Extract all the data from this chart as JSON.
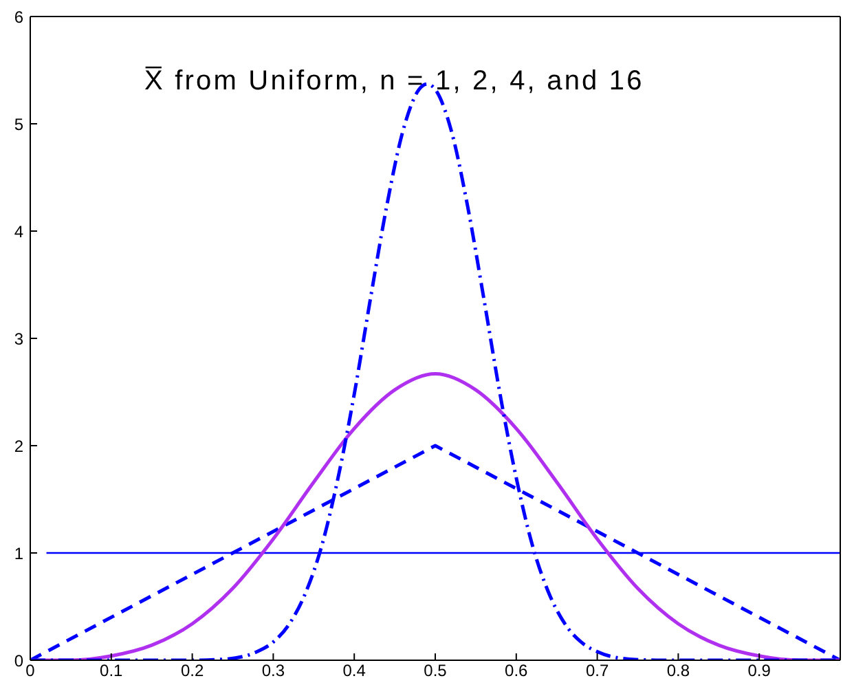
{
  "chart_data": {
    "type": "line",
    "title": "X̅ from Uniform, n = 1, 2, 4, and 16",
    "xlim": [
      0,
      1
    ],
    "xticks": [
      0,
      0.1,
      0.2,
      0.3,
      0.4,
      0.5,
      0.6,
      0.7,
      0.8,
      0.9
    ],
    "ylim": [
      0,
      6
    ],
    "yticks": [
      0,
      1,
      2,
      3,
      4,
      5,
      6
    ],
    "marker": "none",
    "series": [
      {
        "color": "#0000ff",
        "line_style": "solid",
        "x": [
          0.02,
          1
        ],
        "values": [
          1,
          1
        ]
      },
      {
        "color": "#0000ff",
        "line_style": "dashed",
        "x": [
          0,
          0.5,
          1
        ],
        "values": [
          0,
          2,
          0
        ]
      },
      {
        "color": "#b030f0",
        "line_style": "solid",
        "x": [
          0,
          0.05,
          0.1,
          0.15,
          0.2,
          0.25,
          0.3,
          0.35,
          0.4,
          0.45,
          0.5,
          0.55,
          0.6,
          0.65,
          0.7,
          0.75,
          0.8,
          0.85,
          0.9,
          0.95,
          1
        ],
        "values": [
          0,
          0,
          0.04,
          0.14,
          0.34,
          0.67,
          1.13,
          1.66,
          2.16,
          2.52,
          2.67,
          2.52,
          2.16,
          1.66,
          1.13,
          0.67,
          0.34,
          0.14,
          0.04,
          0,
          0
        ]
      },
      {
        "color": "#0000ff",
        "line_style": "dashdot",
        "x": [
          0,
          0.2,
          0.24,
          0.28,
          0.3,
          0.32,
          0.34,
          0.36,
          0.38,
          0.4,
          0.42,
          0.44,
          0.46,
          0.48,
          0.49,
          0.5,
          0.52,
          0.54,
          0.56,
          0.58,
          0.6,
          0.62,
          0.64,
          0.66,
          0.68,
          0.7,
          0.74,
          0.78,
          1
        ],
        "values": [
          0,
          0,
          0.01,
          0.08,
          0.17,
          0.34,
          0.63,
          1.07,
          1.7,
          2.48,
          3.37,
          4.23,
          4.93,
          5.32,
          5.37,
          5.32,
          4.93,
          4.23,
          3.37,
          2.48,
          1.7,
          1.07,
          0.63,
          0.34,
          0.17,
          0.08,
          0.01,
          0,
          0
        ]
      }
    ]
  }
}
